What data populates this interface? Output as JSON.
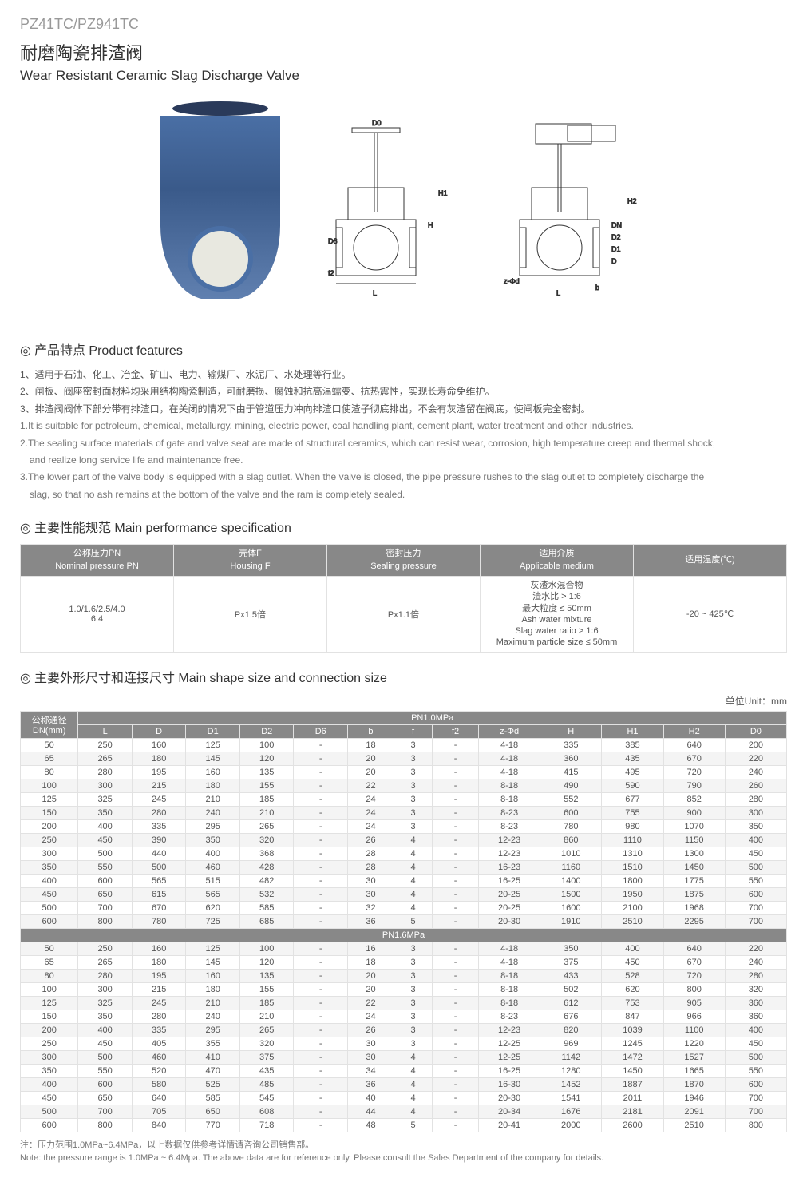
{
  "model": "PZ41TC/PZ941TC",
  "title_cn": "耐磨陶瓷排渣阀",
  "title_en": "Wear Resistant Ceramic Slag Discharge Valve",
  "features_title": "产品特点 Product features",
  "features": [
    "1、适用于石油、化工、冶金、矿山、电力、输煤厂、水泥厂、水处理等行业。",
    "2、闸板、阀座密封面材料均采用结构陶瓷制造，可耐磨损、腐蚀和抗高温蠕变、抗热震性，实现长寿命免维护。",
    "3、排渣阀阀体下部分带有排渣口，在关闭的情况下由于管道压力冲向排渣口使渣子彻底排出，不会有灰渣留在阀底，使闸板完全密封。"
  ],
  "features_en": [
    "1.It is suitable for petroleum, chemical, metallurgy, mining, electric power, coal handling plant, cement plant, water treatment and other industries.",
    "2.The sealing surface materials of gate and valve seat are made of structural ceramics, which can resist wear, corrosion, high temperature creep and thermal shock,",
    "and realize long service life and maintenance free.",
    "3.The lower part of the valve body is equipped with a slag outlet. When the valve is closed, the pipe pressure rushes to the slag outlet to completely discharge the",
    "slag, so that no ash remains at the bottom of the valve and the ram is completely sealed."
  ],
  "perf_title": "主要性能规范 Main performance specification",
  "perf_headers": {
    "pn_cn": "公称压力PN",
    "pn_en": "Nominal pressure PN",
    "hf_cn": "壳体F",
    "hf_en": "Housing F",
    "sp_cn": "密封压力",
    "sp_en": "Sealing pressure",
    "am_cn": "适用介质",
    "am_en": "Applicable medium",
    "temp": "适用温度(℃)"
  },
  "perf_row": {
    "pn": "1.0/1.6/2.5/4.0\n6.4",
    "hf": "Px1.5倍",
    "sp": "Px1.1倍",
    "am": "灰渣水混合物\n渣水比 > 1:6\n最大粒度 ≤ 50mm\nAsh water mixture\nSlag water ratio > 1:6\nMaximum particle size ≤ 50mm",
    "temp": "-20 ~ 425℃"
  },
  "size_title": "主要外形尺寸和连接尺寸 Main shape size and connection size",
  "unit_label": "单位Unit：mm",
  "size_col_dn_cn": "公称通径",
  "size_col_dn_en": "DN(mm)",
  "size_cols": [
    "L",
    "D",
    "D1",
    "D2",
    "D6",
    "b",
    "f",
    "f2",
    "z-Φd",
    "H",
    "H1",
    "H2",
    "D0"
  ],
  "pn10_label": "PN1.0MPa",
  "pn16_label": "PN1.6MPa",
  "pn10_rows": [
    [
      "50",
      "250",
      "160",
      "125",
      "100",
      "-",
      "18",
      "3",
      "-",
      "4-18",
      "335",
      "385",
      "640",
      "200"
    ],
    [
      "65",
      "265",
      "180",
      "145",
      "120",
      "-",
      "20",
      "3",
      "-",
      "4-18",
      "360",
      "435",
      "670",
      "220"
    ],
    [
      "80",
      "280",
      "195",
      "160",
      "135",
      "-",
      "20",
      "3",
      "-",
      "4-18",
      "415",
      "495",
      "720",
      "240"
    ],
    [
      "100",
      "300",
      "215",
      "180",
      "155",
      "-",
      "22",
      "3",
      "-",
      "8-18",
      "490",
      "590",
      "790",
      "260"
    ],
    [
      "125",
      "325",
      "245",
      "210",
      "185",
      "-",
      "24",
      "3",
      "-",
      "8-18",
      "552",
      "677",
      "852",
      "280"
    ],
    [
      "150",
      "350",
      "280",
      "240",
      "210",
      "-",
      "24",
      "3",
      "-",
      "8-23",
      "600",
      "755",
      "900",
      "300"
    ],
    [
      "200",
      "400",
      "335",
      "295",
      "265",
      "-",
      "24",
      "3",
      "-",
      "8-23",
      "780",
      "980",
      "1070",
      "350"
    ],
    [
      "250",
      "450",
      "390",
      "350",
      "320",
      "-",
      "26",
      "4",
      "-",
      "12-23",
      "860",
      "1110",
      "1150",
      "400"
    ],
    [
      "300",
      "500",
      "440",
      "400",
      "368",
      "-",
      "28",
      "4",
      "-",
      "12-23",
      "1010",
      "1310",
      "1300",
      "450"
    ],
    [
      "350",
      "550",
      "500",
      "460",
      "428",
      "-",
      "28",
      "4",
      "-",
      "16-23",
      "1160",
      "1510",
      "1450",
      "500"
    ],
    [
      "400",
      "600",
      "565",
      "515",
      "482",
      "-",
      "30",
      "4",
      "-",
      "16-25",
      "1400",
      "1800",
      "1775",
      "550"
    ],
    [
      "450",
      "650",
      "615",
      "565",
      "532",
      "-",
      "30",
      "4",
      "-",
      "20-25",
      "1500",
      "1950",
      "1875",
      "600"
    ],
    [
      "500",
      "700",
      "670",
      "620",
      "585",
      "-",
      "32",
      "4",
      "-",
      "20-25",
      "1600",
      "2100",
      "1968",
      "700"
    ],
    [
      "600",
      "800",
      "780",
      "725",
      "685",
      "-",
      "36",
      "5",
      "-",
      "20-30",
      "1910",
      "2510",
      "2295",
      "700"
    ]
  ],
  "pn16_rows": [
    [
      "50",
      "250",
      "160",
      "125",
      "100",
      "-",
      "16",
      "3",
      "-",
      "4-18",
      "350",
      "400",
      "640",
      "220"
    ],
    [
      "65",
      "265",
      "180",
      "145",
      "120",
      "-",
      "18",
      "3",
      "-",
      "4-18",
      "375",
      "450",
      "670",
      "240"
    ],
    [
      "80",
      "280",
      "195",
      "160",
      "135",
      "-",
      "20",
      "3",
      "-",
      "8-18",
      "433",
      "528",
      "720",
      "280"
    ],
    [
      "100",
      "300",
      "215",
      "180",
      "155",
      "-",
      "20",
      "3",
      "-",
      "8-18",
      "502",
      "620",
      "800",
      "320"
    ],
    [
      "125",
      "325",
      "245",
      "210",
      "185",
      "-",
      "22",
      "3",
      "-",
      "8-18",
      "612",
      "753",
      "905",
      "360"
    ],
    [
      "150",
      "350",
      "280",
      "240",
      "210",
      "-",
      "24",
      "3",
      "-",
      "8-23",
      "676",
      "847",
      "966",
      "360"
    ],
    [
      "200",
      "400",
      "335",
      "295",
      "265",
      "-",
      "26",
      "3",
      "-",
      "12-23",
      "820",
      "1039",
      "1100",
      "400"
    ],
    [
      "250",
      "450",
      "405",
      "355",
      "320",
      "-",
      "30",
      "3",
      "-",
      "12-25",
      "969",
      "1245",
      "1220",
      "450"
    ],
    [
      "300",
      "500",
      "460",
      "410",
      "375",
      "-",
      "30",
      "4",
      "-",
      "12-25",
      "1142",
      "1472",
      "1527",
      "500"
    ],
    [
      "350",
      "550",
      "520",
      "470",
      "435",
      "-",
      "34",
      "4",
      "-",
      "16-25",
      "1280",
      "1450",
      "1665",
      "550"
    ],
    [
      "400",
      "600",
      "580",
      "525",
      "485",
      "-",
      "36",
      "4",
      "-",
      "16-30",
      "1452",
      "1887",
      "1870",
      "600"
    ],
    [
      "450",
      "650",
      "640",
      "585",
      "545",
      "-",
      "40",
      "4",
      "-",
      "20-30",
      "1541",
      "2011",
      "1946",
      "700"
    ],
    [
      "500",
      "700",
      "705",
      "650",
      "608",
      "-",
      "44",
      "4",
      "-",
      "20-34",
      "1676",
      "2181",
      "2091",
      "700"
    ],
    [
      "600",
      "800",
      "840",
      "770",
      "718",
      "-",
      "48",
      "5",
      "-",
      "20-41",
      "2000",
      "2600",
      "2510",
      "800"
    ]
  ],
  "footnote_cn": "注：压力范围1.0MPa~6.4MPa，以上数据仅供参考详情请咨询公司销售部。",
  "footnote_en": "Note: the pressure range is 1.0MPa ~ 6.4Mpa. The above data are for reference only. Please consult the Sales Department of the company for details.",
  "diagram_labels": {
    "d0": "D0",
    "h": "H",
    "h1": "H1",
    "h2": "H2",
    "d6": "D6",
    "f2": "f2",
    "l": "L",
    "b": "b",
    "zphi": "z-Φd",
    "dn": "DN",
    "d2": "D2",
    "d1": "D1",
    "d": "D"
  },
  "colors": {
    "header_bg": "#888888",
    "header_fg": "#ffffff",
    "border": "#e2e2e2",
    "alt_row": "#f4f4f4",
    "text": "#555555",
    "valve_blue": "#4a6fa5"
  }
}
